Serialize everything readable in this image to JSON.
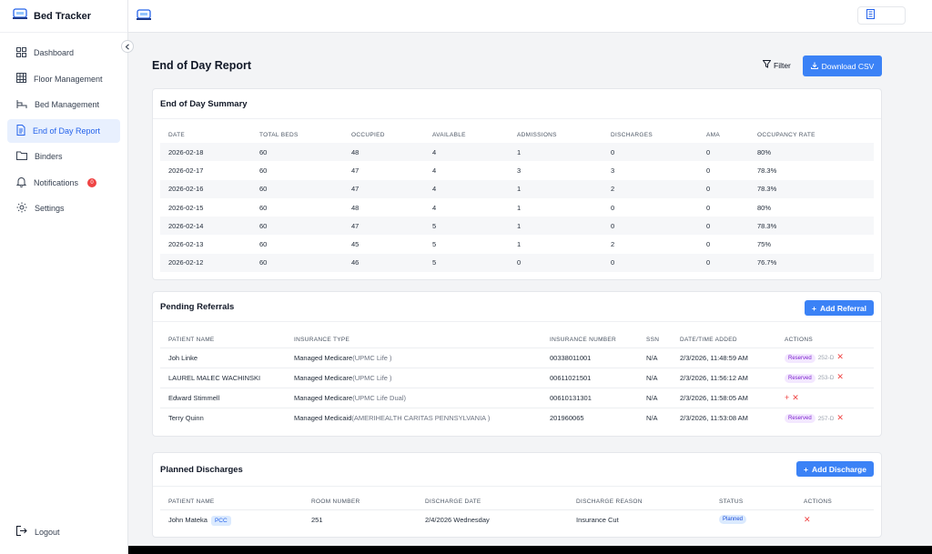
{
  "app": {
    "title": "Bed Tracker"
  },
  "sidebar": {
    "items": [
      {
        "label": "Dashboard",
        "icon": "dashboard-icon"
      },
      {
        "label": "Floor Management",
        "icon": "grid-icon"
      },
      {
        "label": "Bed Management",
        "icon": "bed-icon"
      },
      {
        "label": "End of Day Report",
        "icon": "document-icon",
        "active": true
      },
      {
        "label": "Binders",
        "icon": "folder-icon"
      },
      {
        "label": "Notifications",
        "icon": "bell-icon",
        "badge": "0"
      },
      {
        "label": "Settings",
        "icon": "gear-icon"
      }
    ],
    "logout_label": "Logout"
  },
  "page": {
    "title": "End of Day Report",
    "filter_label": "Filter",
    "download_label": "Download CSV"
  },
  "summary": {
    "title": "End of Day Summary",
    "columns": [
      "DATE",
      "TOTAL BEDS",
      "OCCUPIED",
      "AVAILABLE",
      "ADMISSIONS",
      "DISCHARGES",
      "AMA",
      "OCCUPANCY RATE"
    ],
    "rows": [
      [
        "2026-02-18",
        "60",
        "48",
        "4",
        "1",
        "0",
        "0",
        "80%"
      ],
      [
        "2026-02-17",
        "60",
        "47",
        "4",
        "3",
        "3",
        "0",
        "78.3%"
      ],
      [
        "2026-02-16",
        "60",
        "47",
        "4",
        "1",
        "2",
        "0",
        "78.3%"
      ],
      [
        "2026-02-15",
        "60",
        "48",
        "4",
        "1",
        "0",
        "0",
        "80%"
      ],
      [
        "2026-02-14",
        "60",
        "47",
        "5",
        "1",
        "0",
        "0",
        "78.3%"
      ],
      [
        "2026-02-13",
        "60",
        "45",
        "5",
        "1",
        "2",
        "0",
        "75%"
      ],
      [
        "2026-02-12",
        "60",
        "46",
        "5",
        "0",
        "0",
        "0",
        "76.7%"
      ]
    ]
  },
  "referrals": {
    "title": "Pending Referrals",
    "add_label": "Add Referral",
    "columns": [
      "PATIENT NAME",
      "INSURANCE TYPE",
      "INSURANCE NUMBER",
      "SSN",
      "DATE/TIME ADDED",
      "ACTIONS"
    ],
    "rows": [
      {
        "name": "Joh Linke",
        "ins_type": "Managed Medicare",
        "ins_plan": "(UPMC Life )",
        "ins_number": "00338011001",
        "ssn": "N/A",
        "added": "2/3/2026, 11:48:59 AM",
        "status": "Reserved",
        "bed": "252-D"
      },
      {
        "name": "LAUREL  MALEC WACHINSKI",
        "ins_type": "Managed Medicare",
        "ins_plan": "(UPMC Life )",
        "ins_number": "00611021501",
        "ssn": "N/A",
        "added": "2/3/2026, 11:56:12 AM",
        "status": "Reserved",
        "bed": "253-D"
      },
      {
        "name": "Edward  Stimmell",
        "ins_type": "Managed Medicare",
        "ins_plan": "(UPMC Life Dual)",
        "ins_number": "00610131301",
        "ssn": "N/A",
        "added": "2/3/2026, 11:58:05 AM",
        "status": "",
        "bed": ""
      },
      {
        "name": "Terry Quinn",
        "ins_type": "Managed Medicaid",
        "ins_plan": "(AMERIHEALTH CARITAS PENNSYLVANIA )",
        "ins_number": "201960065",
        "ssn": "N/A",
        "added": "2/3/2026, 11:53:08 AM",
        "status": "Reserved",
        "bed": "257-D"
      }
    ]
  },
  "discharges": {
    "title": "Planned Discharges",
    "add_label": "Add Discharge",
    "columns": [
      "PATIENT NAME",
      "ROOM NUMBER",
      "DISCHARGE DATE",
      "DISCHARGE REASON",
      "STATUS",
      "ACTIONS"
    ],
    "rows": [
      {
        "name": "John Mateka",
        "tag": "PCC",
        "room": "251",
        "date": "2/4/2026 Wednesday",
        "reason": "Insurance Cut",
        "status": "Planned"
      }
    ]
  },
  "colors": {
    "accent": "#3b82f6",
    "active_bg": "#e8f0fe",
    "danger": "#ef4444",
    "reserved": "#7e22ce"
  }
}
